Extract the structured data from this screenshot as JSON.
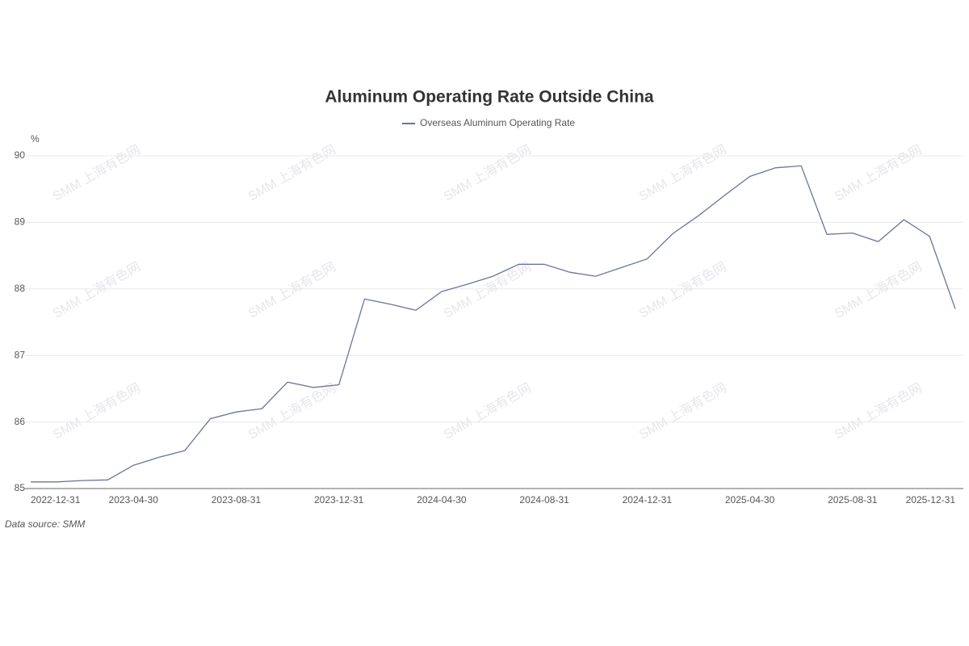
{
  "chart_data": {
    "type": "line",
    "title": "Aluminum Operating Rate Outside China",
    "y_axis_label": "%",
    "source": "Data source:  SMM",
    "watermark": "SMM 上海有色网",
    "categories": [
      "2022-12-31",
      null,
      null,
      null,
      "2023-04-30",
      null,
      null,
      null,
      "2023-08-31",
      null,
      null,
      null,
      "2023-12-31",
      null,
      null,
      null,
      "2024-04-30",
      null,
      null,
      null,
      "2024-08-31",
      null,
      null,
      null,
      "2024-12-31",
      null,
      null,
      null,
      "2025-04-30",
      null,
      null,
      null,
      "2025-08-31",
      null,
      null,
      null,
      "2025-12-31"
    ],
    "series": [
      {
        "name": "Overseas Aluminum Operating Rate",
        "color": "#6b7597",
        "values": [
          85.1,
          85.1,
          85.12,
          85.13,
          85.35,
          85.47,
          85.57,
          86.05,
          86.15,
          86.2,
          86.6,
          86.52,
          86.56,
          87.85,
          87.77,
          87.68,
          87.96,
          88.07,
          88.19,
          88.37,
          88.37,
          88.25,
          88.19,
          88.32,
          88.45,
          88.83,
          89.1,
          89.4,
          89.69,
          89.82,
          89.85,
          88.82,
          88.84,
          88.71,
          89.04,
          88.79,
          87.7
        ]
      }
    ],
    "ylim": [
      85,
      90
    ],
    "yticks": [
      85,
      86,
      87,
      88,
      89,
      90
    ],
    "grid": true
  }
}
